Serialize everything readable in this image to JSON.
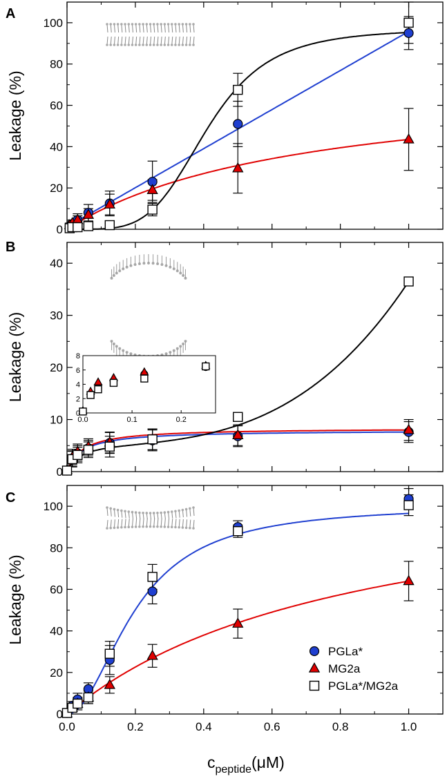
{
  "figure": {
    "x_axis_label": {
      "main": "c",
      "subscript": "peptide",
      "unit": "(μM)"
    },
    "colors": {
      "pgla": "#1f3fd0",
      "mg2a": "#e00000",
      "combo": "#000000"
    }
  },
  "legend": [
    {
      "label": "PGLa*",
      "marker": "circle"
    },
    {
      "label": "MG2a",
      "marker": "triangle"
    },
    {
      "label": "PGLa*/MG2a",
      "marker": "square"
    }
  ],
  "chart_data": [
    {
      "panel": "A",
      "type": "scatter",
      "ylabel": "Leakage (%)",
      "xlim": [
        0,
        1.1
      ],
      "ylim": [
        0,
        110
      ],
      "xticks": [
        0.0,
        0.2,
        0.4,
        0.6,
        0.8,
        1.0
      ],
      "show_xtick_labels": false,
      "yticks": [
        0,
        20,
        40,
        60,
        80,
        100
      ],
      "series": [
        {
          "name": "PGLa*",
          "marker": "circle",
          "x": [
            0.0078,
            0.0156,
            0.031,
            0.0625,
            0.125,
            0.25,
            0.5,
            1.0
          ],
          "y": [
            1.5,
            2.5,
            4.5,
            8,
            12.5,
            23,
            51,
            95
          ],
          "err": [
            1,
            1.5,
            3,
            4,
            6,
            10,
            11,
            8
          ],
          "fit": "linear"
        },
        {
          "name": "MG2a",
          "marker": "triangle",
          "x": [
            0.0078,
            0.0156,
            0.031,
            0.0625,
            0.125,
            0.25,
            0.5,
            1.0
          ],
          "y": [
            2,
            3,
            4.5,
            7,
            12,
            19,
            29.5,
            43.5
          ],
          "err": [
            1,
            1.5,
            2,
            3,
            5,
            5,
            12,
            15
          ],
          "fit": "saturating"
        },
        {
          "name": "PGLa*/MG2a",
          "marker": "square",
          "x": [
            0.0078,
            0.0156,
            0.031,
            0.0625,
            0.125,
            0.25,
            0.5,
            1.0
          ],
          "y": [
            0.5,
            1,
            1,
            1.5,
            2,
            9.5,
            67.5,
            100
          ],
          "err": [
            0.5,
            0.5,
            0.5,
            1,
            1,
            3,
            8,
            10
          ],
          "fit": "sigmoid"
        }
      ]
    },
    {
      "panel": "B",
      "type": "scatter",
      "ylabel": "Leakage (%)",
      "xlim": [
        0,
        1.1
      ],
      "ylim": [
        0,
        44
      ],
      "xticks": [
        0.0,
        0.2,
        0.4,
        0.6,
        0.8,
        1.0
      ],
      "show_xtick_labels": false,
      "yticks": [
        0,
        10,
        20,
        30,
        40
      ],
      "series": [
        {
          "name": "PGLa*",
          "marker": "circle",
          "x": [
            0.0,
            0.0156,
            0.031,
            0.0625,
            0.125,
            0.25,
            0.5,
            1.0
          ],
          "y": [
            0.2,
            2.5,
            3.5,
            4.5,
            5.5,
            6,
            6.8,
            7.6
          ],
          "err": [
            0.3,
            1.5,
            1.5,
            1.5,
            2,
            2,
            2,
            2
          ],
          "fit": "saturating"
        },
        {
          "name": "MG2a",
          "marker": "triangle",
          "x": [
            0.0,
            0.0156,
            0.031,
            0.0625,
            0.125,
            0.25,
            0.5,
            1.0
          ],
          "y": [
            0.3,
            2.8,
            3.8,
            4.8,
            5.6,
            6.2,
            7,
            8
          ],
          "err": [
            0.3,
            1.5,
            1.5,
            1.5,
            2,
            2,
            2,
            2
          ],
          "fit": "saturating"
        },
        {
          "name": "PGLa*/MG2a",
          "marker": "square",
          "x": [
            0.0,
            0.0156,
            0.031,
            0.0625,
            0.125,
            0.25,
            0.5,
            1.0
          ],
          "y": [
            0.2,
            2.4,
            3.2,
            4.2,
            4.8,
            6.2,
            10.5,
            36.5
          ],
          "err": [
            0.3,
            1.5,
            1.5,
            1.5,
            2,
            2,
            0.5,
            0.3
          ],
          "fit": "growth"
        }
      ],
      "inset": {
        "xlim": [
          0,
          0.27
        ],
        "ylim": [
          0,
          8
        ],
        "xticks": [
          0.0,
          0.1,
          0.2
        ],
        "yticks": [
          0,
          2,
          4,
          6,
          8
        ],
        "series": [
          {
            "name": "PGLa*",
            "marker": "circle",
            "x": [
              0.0,
              0.0156,
              0.031,
              0.0625,
              0.125,
              0.25
            ],
            "y": [
              0.2,
              2.6,
              3.5,
              4.4,
              5.4,
              6.4
            ]
          },
          {
            "name": "MG2a",
            "marker": "triangle",
            "x": [
              0.0,
              0.0156,
              0.031,
              0.0625,
              0.125,
              0.25
            ],
            "y": [
              0.3,
              3.0,
              4.3,
              4.9,
              5.7,
              6.6
            ]
          },
          {
            "name": "PGLa*/MG2a",
            "marker": "square",
            "x": [
              0.0,
              0.0156,
              0.031,
              0.0625,
              0.125,
              0.25
            ],
            "y": [
              0.2,
              2.5,
              3.3,
              4.2,
              4.8,
              6.5
            ]
          }
        ]
      }
    },
    {
      "panel": "C",
      "type": "scatter",
      "ylabel": "Leakage (%)",
      "xlim": [
        0,
        1.1
      ],
      "ylim": [
        0,
        110
      ],
      "xticks": [
        0.0,
        0.2,
        0.4,
        0.6,
        0.8,
        1.0
      ],
      "show_xtick_labels": true,
      "xtick_labels": [
        "0.0",
        "0.2",
        "0.4",
        "0.6",
        "0.8",
        "1.0"
      ],
      "yticks": [
        0,
        20,
        40,
        60,
        80,
        100
      ],
      "series": [
        {
          "name": "PGLa*",
          "marker": "circle",
          "x": [
            0.0,
            0.0156,
            0.031,
            0.0625,
            0.125,
            0.25,
            0.5,
            1.0
          ],
          "y": [
            0.5,
            4,
            7,
            12,
            26,
            59,
            90,
            103.5
          ],
          "err": [
            0.5,
            2,
            3,
            3,
            7,
            6,
            3,
            5
          ],
          "fit": "sigmoid"
        },
        {
          "name": "MG2a",
          "marker": "triangle",
          "x": [
            0.0,
            0.0156,
            0.031,
            0.0625,
            0.125,
            0.25,
            0.5,
            1.0
          ],
          "y": [
            0.3,
            3,
            5,
            8,
            14,
            28,
            43.5,
            64
          ],
          "err": [
            0.3,
            1.5,
            2,
            3,
            4,
            5.5,
            7,
            9.5
          ],
          "fit": "saturating"
        },
        {
          "name": "PGLa*/MG2a",
          "marker": "square",
          "x": [
            0.0,
            0.0156,
            0.031,
            0.0625,
            0.125,
            0.25,
            0.5,
            1.0
          ],
          "y": [
            0.5,
            3,
            5,
            8,
            29,
            66,
            88,
            100.5
          ],
          "err": [
            0.5,
            2,
            3,
            3,
            6,
            6,
            3,
            5
          ],
          "fit": "none"
        }
      ]
    }
  ]
}
